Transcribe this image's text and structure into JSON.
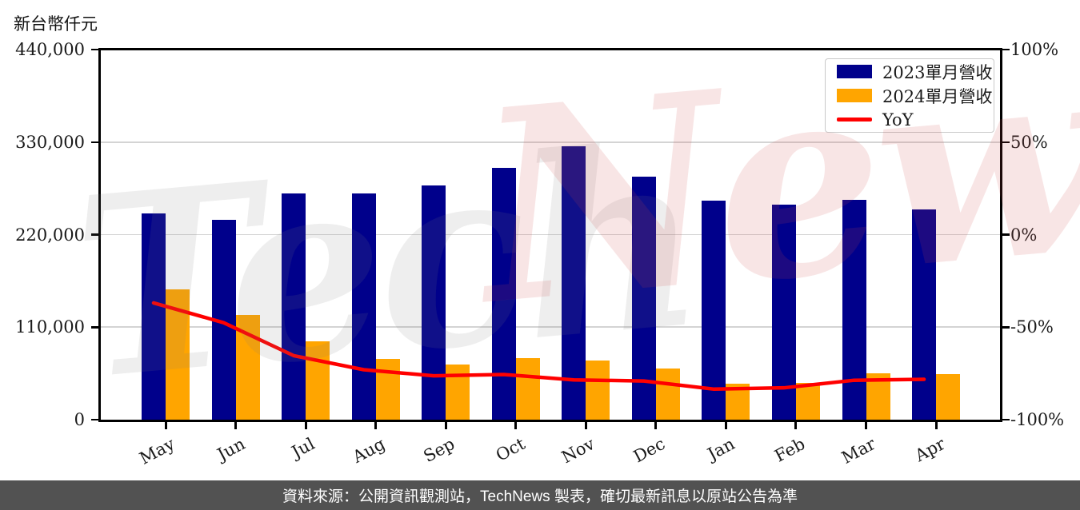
{
  "title": {
    "y_axis_unit": "新台幣仟元"
  },
  "watermark": {
    "part1": "Tech",
    "part2": "News"
  },
  "source_bar": {
    "text": "資料來源：公開資訊觀測站，TechNews 製表，確切最新訊息以原站公告為準",
    "bg_color": "#525252",
    "text_color": "#FFFFFF"
  },
  "legend": {
    "items": [
      {
        "label": "2023單月營收",
        "swatch": "box",
        "color": "#00008B"
      },
      {
        "label": "2024單月營收",
        "swatch": "box",
        "color": "#FFA500"
      },
      {
        "label": "YoY",
        "swatch": "line",
        "color": "#FF0000"
      }
    ]
  },
  "chart_data": {
    "type": "bar",
    "subtype": "grouped bars with overlaid line (dual axis)",
    "categories": [
      "May",
      "Jun",
      "Jul",
      "Aug",
      "Sep",
      "Oct",
      "Nov",
      "Dec",
      "Jan",
      "Feb",
      "Mar",
      "Apr"
    ],
    "series": [
      {
        "name": "2023單月營收",
        "type": "bar",
        "axis": "left",
        "color": "#00008B",
        "values": [
          245000,
          237500,
          269000,
          269000,
          278500,
          299500,
          325000,
          289000,
          260500,
          256000,
          261000,
          250000
        ]
      },
      {
        "name": "2024單月營收",
        "type": "bar",
        "axis": "left",
        "color": "#FFA500",
        "values": [
          154500,
          124500,
          93000,
          72500,
          66000,
          73000,
          70000,
          60500,
          43000,
          44000,
          55500,
          54500
        ]
      },
      {
        "name": "YoY",
        "type": "line",
        "axis": "right",
        "color": "#FF0000",
        "values": [
          -36.9,
          -47.6,
          -65.4,
          -73,
          -76.3,
          -75.6,
          -78.5,
          -79.1,
          -83.5,
          -82.8,
          -78.7,
          -78.2
        ]
      }
    ],
    "left_axis": {
      "title": "新台幣仟元",
      "min": 0,
      "max": 440000,
      "ticks": [
        0,
        110000,
        220000,
        330000,
        440000
      ],
      "tick_labels": [
        "0",
        "110,000",
        "220,000",
        "330,000",
        "440,000"
      ]
    },
    "right_axis": {
      "min": -100,
      "max": 100,
      "ticks": [
        -100,
        -50,
        0,
        50,
        100
      ],
      "tick_labels": [
        "-100%",
        "-50%",
        "0%",
        "50%",
        "100%"
      ]
    },
    "grid": true,
    "legend_position": "upper right",
    "values_unit": "新台幣仟元 (NT$ thousands)"
  }
}
